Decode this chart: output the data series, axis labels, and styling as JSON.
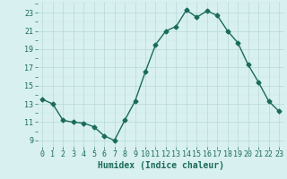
{
  "x": [
    0,
    1,
    2,
    3,
    4,
    5,
    6,
    7,
    8,
    9,
    10,
    11,
    12,
    13,
    14,
    15,
    16,
    17,
    18,
    19,
    20,
    21,
    22,
    23
  ],
  "y": [
    13.5,
    13.0,
    11.2,
    11.0,
    10.9,
    10.5,
    9.5,
    9.0,
    11.2,
    13.3,
    16.5,
    19.5,
    21.0,
    21.5,
    23.3,
    22.5,
    23.2,
    22.7,
    21.0,
    19.7,
    17.3,
    15.4,
    13.3,
    12.2
  ],
  "line_color": "#1a6b5a",
  "marker": "D",
  "markersize": 2.5,
  "linewidth": 1.0,
  "bg_color": "#d8f0f0",
  "grid_color_major": "#b8d8d8",
  "grid_color_minor": "#c8e8e8",
  "xlabel": "Humidex (Indice chaleur)",
  "xlabel_fontsize": 7,
  "ylabel_ticks": [
    9,
    11,
    13,
    15,
    17,
    19,
    21,
    23
  ],
  "xlim": [
    -0.5,
    23.5
  ],
  "ylim": [
    8.3,
    24.2
  ],
  "xticks": [
    0,
    1,
    2,
    3,
    4,
    5,
    6,
    7,
    8,
    9,
    10,
    11,
    12,
    13,
    14,
    15,
    16,
    17,
    18,
    19,
    20,
    21,
    22,
    23
  ],
  "tick_fontsize": 6,
  "tick_color": "#1a6b5a"
}
